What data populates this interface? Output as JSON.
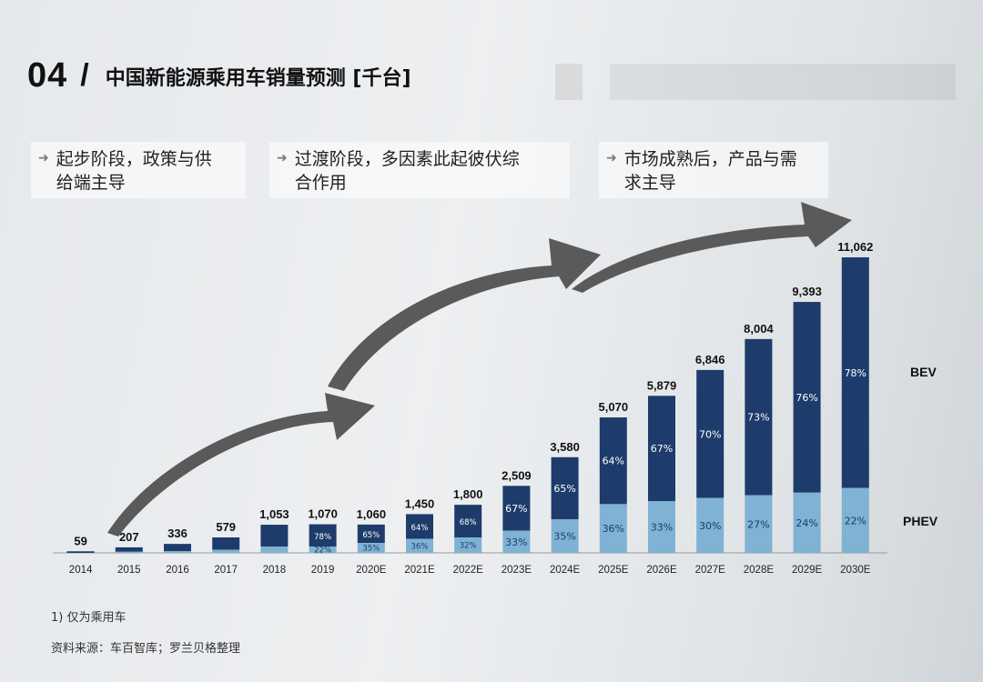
{
  "header": {
    "number": "04",
    "slash": "/",
    "title": "中国新能源乘用车销量预测 [千台]"
  },
  "phases": [
    {
      "label": "起步阶段，政策与供\n给端主导"
    },
    {
      "label": "过渡阶段，多因素此起彼伏综\n合作用"
    },
    {
      "label": "市场成熟后，产品与需\n求主导"
    }
  ],
  "footer": {
    "note": "1) 仅为乘用车",
    "source": "资料来源：车百智库；罗兰贝格整理"
  },
  "colors": {
    "bev": "#1d3c6b",
    "phev": "#7fb2d3",
    "arrow": "#5a5a5a",
    "text": "#111111"
  },
  "chart_data": {
    "type": "bar",
    "stacked": true,
    "title": "中国新能源乘用车销量预测 [千台]",
    "categories": [
      "2014",
      "2015",
      "2016",
      "2017",
      "2018",
      "2019",
      "2020E",
      "2021E",
      "2022E",
      "2023E",
      "2024E",
      "2025E",
      "2026E",
      "2027E",
      "2028E",
      "2029E",
      "2030E"
    ],
    "totals": [
      59,
      207,
      336,
      579,
      1053,
      1070,
      1060,
      1450,
      1800,
      2509,
      3580,
      5070,
      5879,
      6846,
      8004,
      9393,
      11062
    ],
    "total_labels": [
      "59",
      "207",
      "336",
      "579",
      "1,053",
      "1,070",
      "1,060",
      "1,450",
      "1,800",
      "2,509",
      "3,580",
      "5,070",
      "5,879",
      "6,846",
      "8,004",
      "9,393",
      "11,062"
    ],
    "series": [
      {
        "name": "BEV",
        "share_labels": [
          "",
          "",
          "",
          "",
          "",
          "78%",
          "65%",
          "64%",
          "68%",
          "67%",
          "65%",
          "64%",
          "67%",
          "70%",
          "73%",
          "76%",
          "78%"
        ]
      },
      {
        "name": "PHEV",
        "share_labels": [
          "",
          "",
          "",
          "",
          "",
          "22%",
          "35%",
          "36%",
          "32%",
          "33%",
          "35%",
          "36%",
          "33%",
          "30%",
          "27%",
          "24%",
          "22%"
        ]
      }
    ],
    "phev_share_estimated": [
      0,
      0.2,
      0.2,
      0.2,
      0.22,
      0.22,
      0.35,
      0.36,
      0.32,
      0.33,
      0.35,
      0.36,
      0.33,
      0.3,
      0.27,
      0.24,
      0.22
    ],
    "ylim": [
      0,
      11062
    ],
    "legend_position": "right",
    "grid": false
  }
}
